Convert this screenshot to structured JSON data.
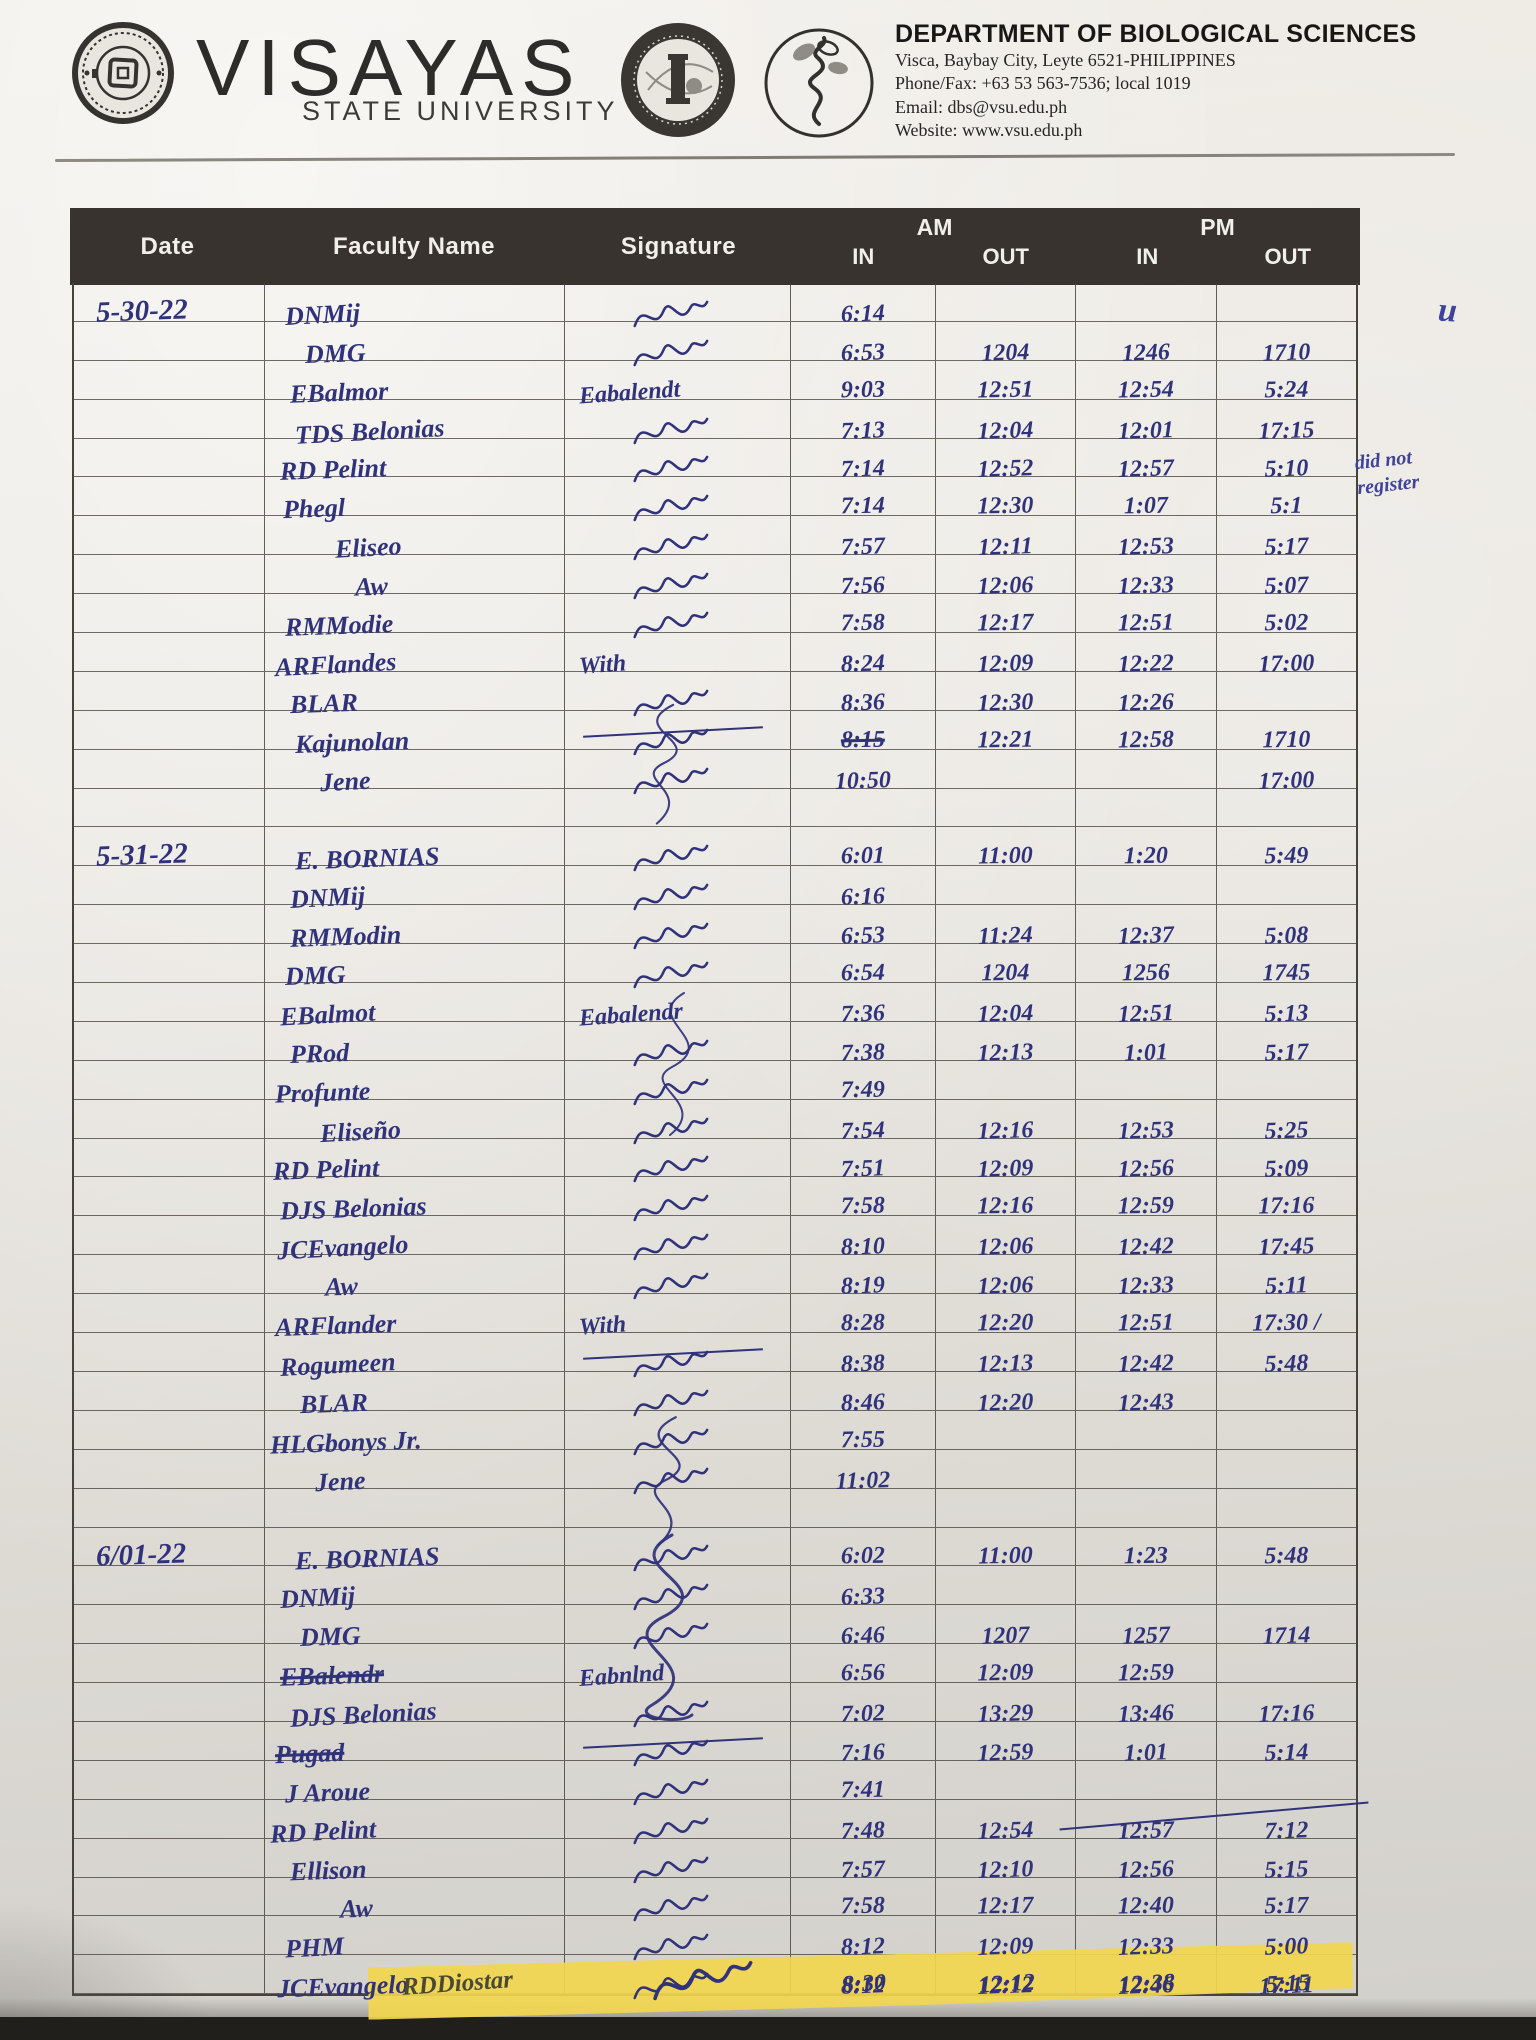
{
  "header": {
    "university_name": "VISAYAS",
    "university_subtitle": "STATE UNIVERSITY",
    "department_title": "DEPARTMENT OF BIOLOGICAL SCIENCES",
    "address_line": "Visca, Baybay City, Leyte 6521-PHILIPPINES",
    "phone_line": "Phone/Fax: +63 53  563-7536; local 1019",
    "email_line": "Email: dbs@vsu.edu.ph",
    "website_line": "Website: www.vsu.edu.ph",
    "logos": {
      "left": "vsu-university-seal",
      "middle": "college-of-arts-and-sciences-seal",
      "right": "biological-sciences-seal"
    }
  },
  "colors": {
    "ink": "#30327a",
    "highlight": "#f0d64e",
    "header_band": "#38332e",
    "paper": "#e8e5df"
  },
  "annotations": {
    "margin_tick": "u",
    "margin_note_line1": "did not",
    "margin_note_line2": "register"
  },
  "table": {
    "columns": {
      "date": "Date",
      "faculty": "Faculty Name",
      "signature": "Signature",
      "am": "AM",
      "pm": "PM",
      "in": "IN",
      "out": "OUT"
    },
    "rows": [
      {
        "date": "5-30-22",
        "name": "DNMij",
        "sig": "scrawl",
        "am_in": "6:14",
        "am_out": "",
        "pm_in": "",
        "pm_out": "",
        "indent": 20
      },
      {
        "name": "DMG",
        "sig": "scrawl",
        "am_in": "6:53",
        "am_out": "1204",
        "pm_in": "1246",
        "pm_out": "1710",
        "indent": 40
      },
      {
        "name": "EBalmor",
        "sig": "Eabalendt",
        "am_in": "9:03",
        "am_out": "12:51",
        "pm_in": "12:54",
        "pm_out": "5:24",
        "indent": 25
      },
      {
        "name": "TDS Belonias",
        "sig": "scrawl",
        "am_in": "7:13",
        "am_out": "12:04",
        "pm_in": "12:01",
        "pm_out": "17:15",
        "indent": 30
      },
      {
        "name": "RD Pelint",
        "sig": "scrawl",
        "am_in": "7:14",
        "am_out": "12:52",
        "pm_in": "12:57",
        "pm_out": "5:10",
        "indent": 15
      },
      {
        "name": "Phegl",
        "sig": "scrawl",
        "am_in": "7:14",
        "am_out": "12:30",
        "pm_in": "1:07",
        "pm_out": "5:1",
        "indent": 18
      },
      {
        "name": "Eliseo",
        "sig": "scrawl",
        "am_in": "7:57",
        "am_out": "12:11",
        "pm_in": "12:53",
        "pm_out": "5:17",
        "indent": 70
      },
      {
        "name": "Aw",
        "sig": "scrawl",
        "am_in": "7:56",
        "am_out": "12:06",
        "pm_in": "12:33",
        "pm_out": "5:07",
        "indent": 90
      },
      {
        "name": "RMModie",
        "sig": "scrawl",
        "am_in": "7:58",
        "am_out": "12:17",
        "pm_in": "12:51",
        "pm_out": "5:02",
        "indent": 20
      },
      {
        "name": "ARFlandes",
        "sig": "With",
        "am_in": "8:24",
        "am_out": "12:09",
        "pm_in": "12:22",
        "pm_out": "17:00",
        "indent": 10
      },
      {
        "name": "BLAR",
        "sig": "scrawl",
        "am_in": "8:36",
        "am_out": "12:30",
        "pm_in": "12:26",
        "pm_out": "",
        "indent": 25
      },
      {
        "name": "Kajunolan",
        "sig": "scrawl",
        "sig_strike": true,
        "am_in": "8:15",
        "am_in_strike": true,
        "am_out": "12:21",
        "pm_in": "12:58",
        "pm_out": "1710",
        "indent": 30
      },
      {
        "name": "Jene",
        "sig": "scrawl",
        "am_in": "10:50",
        "am_out": "",
        "pm_in": "",
        "pm_out": "17:00",
        "indent": 55
      },
      {},
      {
        "date": "5-31-22",
        "name": "E. BORNIAS",
        "sig": "scrawl",
        "am_in": "6:01",
        "am_out": "11:00",
        "pm_in": "1:20",
        "pm_out": "5:49",
        "indent": 30
      },
      {
        "name": "DNMij",
        "sig": "scrawl",
        "am_in": "6:16",
        "am_out": "",
        "pm_in": "",
        "pm_out": "",
        "indent": 25
      },
      {
        "name": "RMModin",
        "sig": "scrawl",
        "am_in": "6:53",
        "am_out": "11:24",
        "pm_in": "12:37",
        "pm_out": "5:08",
        "indent": 25
      },
      {
        "name": "DMG",
        "sig": "scrawl",
        "am_in": "6:54",
        "am_out": "1204",
        "pm_in": "1256",
        "pm_out": "1745",
        "indent": 20
      },
      {
        "name": "EBalmot",
        "sig": "Eabalendr",
        "am_in": "7:36",
        "am_out": "12:04",
        "pm_in": "12:51",
        "pm_out": "5:13",
        "indent": 15
      },
      {
        "name": "PRod",
        "sig": "scrawl",
        "am_in": "7:38",
        "am_out": "12:13",
        "pm_in": "1:01",
        "pm_out": "5:17",
        "indent": 25
      },
      {
        "name": "Profunte",
        "sig": "scrawl",
        "am_in": "7:49",
        "am_out": "",
        "pm_in": "",
        "pm_out": "",
        "indent": 10
      },
      {
        "name": "Eliseño",
        "sig": "scrawl",
        "am_in": "7:54",
        "am_out": "12:16",
        "pm_in": "12:53",
        "pm_out": "5:25",
        "indent": 55
      },
      {
        "name": "RD Pelint",
        "sig": "scrawl",
        "am_in": "7:51",
        "am_out": "12:09",
        "pm_in": "12:56",
        "pm_out": "5:09",
        "indent": 8
      },
      {
        "name": "DJS Belonias",
        "sig": "scrawl",
        "am_in": "7:58",
        "am_out": "12:16",
        "pm_in": "12:59",
        "pm_out": "17:16",
        "indent": 15
      },
      {
        "name": "JCEvangelo",
        "sig": "scrawl",
        "am_in": "8:10",
        "am_out": "12:06",
        "pm_in": "12:42",
        "pm_out": "17:45",
        "indent": 12
      },
      {
        "name": "Aw",
        "sig": "scrawl",
        "am_in": "8:19",
        "am_out": "12:06",
        "pm_in": "12:33",
        "pm_out": "5:11",
        "indent": 60
      },
      {
        "name": "ARFlander",
        "sig": "With",
        "am_in": "8:28",
        "am_out": "12:20",
        "pm_in": "12:51",
        "pm_out": "17:30 /",
        "indent": 10
      },
      {
        "name": "Rogumeen",
        "sig": "scrawl",
        "sig_strike": true,
        "am_in": "8:38",
        "am_out": "12:13",
        "pm_in": "12:42",
        "pm_out": "5:48",
        "indent": 15
      },
      {
        "name": "BLAR",
        "sig": "scrawl",
        "am_in": "8:46",
        "am_out": "12:20",
        "pm_in": "12:43",
        "pm_out": "",
        "indent": 35
      },
      {
        "name": "HLGbonys Jr.",
        "sig": "scrawl",
        "am_in": "7:55",
        "am_out": "",
        "pm_in": "",
        "pm_out": "",
        "indent": 5
      },
      {
        "name": "Jene",
        "sig": "scrawl",
        "am_in": "11:02",
        "am_out": "",
        "pm_in": "",
        "pm_out": "",
        "indent": 50
      },
      {},
      {
        "date": "6/01-22",
        "name": "E. BORNIAS",
        "sig": "scrawl",
        "am_in": "6:02",
        "am_out": "11:00",
        "pm_in": "1:23",
        "pm_out": "5:48",
        "indent": 30
      },
      {
        "name": "DNMij",
        "sig": "scrawl",
        "am_in": "6:33",
        "am_out": "",
        "pm_in": "",
        "pm_out": "",
        "indent": 15
      },
      {
        "name": "DMG",
        "sig": "scrawl",
        "am_in": "6:46",
        "am_out": "1207",
        "pm_in": "1257",
        "pm_out": "1714",
        "indent": 35
      },
      {
        "name": "EBalendr",
        "name_strike": true,
        "sig": "Eabnlnd",
        "am_in": "6:56",
        "am_out": "12:09",
        "pm_in": "12:59",
        "pm_out": "",
        "indent": 15
      },
      {
        "name": "DJS Belonias",
        "sig": "scrawl",
        "am_in": "7:02",
        "am_out": "13:29",
        "pm_in": "13:46",
        "pm_out": "17:16",
        "indent": 25
      },
      {
        "name": "Pugad",
        "name_strike": true,
        "sig": "scrawl",
        "sig_strike": true,
        "am_in": "7:16",
        "am_out": "12:59",
        "pm_in": "1:01",
        "pm_out": "5:14",
        "indent": 10
      },
      {
        "name": "J Aroue",
        "sig": "scrawl",
        "am_in": "7:41",
        "am_out": "",
        "pm_in": "",
        "pm_out": "",
        "indent": 20
      },
      {
        "name": "RD Pelint",
        "sig": "scrawl",
        "am_in": "7:48",
        "am_out": "12:54",
        "pm_in": "12:57",
        "pm_out": "7:12",
        "pm_strike": true,
        "indent": 5
      },
      {
        "name": "Ellison",
        "sig": "scrawl",
        "am_in": "7:57",
        "am_out": "12:10",
        "pm_in": "12:56",
        "pm_out": "5:15",
        "indent": 25
      },
      {
        "name": "Aw",
        "sig": "scrawl",
        "am_in": "7:58",
        "am_out": "12:17",
        "pm_in": "12:40",
        "pm_out": "5:17",
        "indent": 75
      },
      {
        "name": "PHM",
        "sig": "scrawl",
        "am_in": "8:12",
        "am_out": "12:09",
        "pm_in": "12:33",
        "pm_out": "5:00",
        "indent": 20
      },
      {
        "name": "JCEvangelo",
        "sig": "scrawl",
        "am_in": "8:12",
        "am_out": "12:12",
        "pm_in": "12:46",
        "pm_out": "17:11",
        "indent": 12
      },
      {
        "name": "RDDiostar",
        "sig": "scrawl",
        "am_in": "8:30",
        "am_out": "12:12",
        "pm_in": "12:38",
        "pm_out": "5:15",
        "highlight": true
      }
    ]
  }
}
